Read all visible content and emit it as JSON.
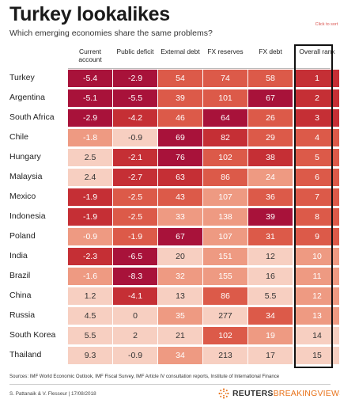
{
  "header": {
    "title": "Turkey lookalikes",
    "subtitle": "Which emerging economies share the same problems?",
    "click_note": "Click to sort"
  },
  "footer": {
    "sources": "Sources: IMF World Economic Outlook, IMF Fiscal Survey, IMF Article IV consultation reports, Institute of International Finance",
    "credits": "S. Pattanaik & V. Flesseur | 17/08/2018",
    "brand_main": "REUTERS",
    "brand_sub": "BREAKINGVIEWS"
  },
  "colors": {
    "dark": "#a8123a",
    "strong": "#c52f35",
    "mid": "#dc5a49",
    "light": "#ee9a82",
    "pale": "#f7cfc1",
    "rank_box": "#111111",
    "accent": "#e8731b"
  },
  "chart_data": {
    "type": "table",
    "title": "Turkey lookalikes",
    "subtitle": "Which emerging economies share the same problems?",
    "columns": [
      "Current account",
      "Public deficit",
      "External debt",
      "FX reserves",
      "FX debt",
      "Overall rank"
    ],
    "rows": [
      {
        "country": "Turkey",
        "values": [
          "-5.4",
          "-2.9",
          "54",
          "74",
          "58",
          "1"
        ],
        "shades": [
          "dark",
          "dark",
          "mid",
          "mid",
          "mid",
          "strong"
        ]
      },
      {
        "country": "Argentina",
        "values": [
          "-5.1",
          "-5.5",
          "39",
          "101",
          "67",
          "2"
        ],
        "shades": [
          "dark",
          "dark",
          "mid",
          "mid",
          "dark",
          "strong"
        ]
      },
      {
        "country": "South Africa",
        "values": [
          "-2.9",
          "-4.2",
          "46",
          "64",
          "26",
          "3"
        ],
        "shades": [
          "dark",
          "strong",
          "mid",
          "dark",
          "mid",
          "strong"
        ]
      },
      {
        "country": "Chile",
        "values": [
          "-1.8",
          "-0.9",
          "69",
          "82",
          "29",
          "4"
        ],
        "shades": [
          "light",
          "pale",
          "dark",
          "strong",
          "mid",
          "mid"
        ]
      },
      {
        "country": "Hungary",
        "values": [
          "2.5",
          "-2.1",
          "76",
          "102",
          "38",
          "5"
        ],
        "shades": [
          "pale",
          "strong",
          "dark",
          "mid",
          "strong",
          "mid"
        ]
      },
      {
        "country": "Malaysia",
        "values": [
          "2.4",
          "-2.7",
          "63",
          "86",
          "24",
          "6"
        ],
        "shades": [
          "pale",
          "strong",
          "strong",
          "mid",
          "light",
          "mid"
        ]
      },
      {
        "country": "Mexico",
        "values": [
          "-1.9",
          "-2.5",
          "43",
          "107",
          "36",
          "7"
        ],
        "shades": [
          "strong",
          "mid",
          "mid",
          "light",
          "mid",
          "mid"
        ]
      },
      {
        "country": "Indonesia",
        "values": [
          "-1.9",
          "-2.5",
          "33",
          "138",
          "39",
          "8"
        ],
        "shades": [
          "strong",
          "mid",
          "light",
          "light",
          "dark",
          "mid"
        ]
      },
      {
        "country": "Poland",
        "values": [
          "-0.9",
          "-1.9",
          "67",
          "107",
          "31",
          "9"
        ],
        "shades": [
          "light",
          "mid",
          "dark",
          "light",
          "mid",
          "mid"
        ]
      },
      {
        "country": "India",
        "values": [
          "-2.3",
          "-6.5",
          "20",
          "151",
          "12",
          "10"
        ],
        "shades": [
          "strong",
          "dark",
          "pale",
          "light",
          "pale",
          "light"
        ]
      },
      {
        "country": "Brazil",
        "values": [
          "-1.6",
          "-8.3",
          "32",
          "155",
          "16",
          "11"
        ],
        "shades": [
          "light",
          "dark",
          "light",
          "light",
          "pale",
          "light"
        ]
      },
      {
        "country": "China",
        "values": [
          "1.2",
          "-4.1",
          "13",
          "86",
          "5.5",
          "12"
        ],
        "shades": [
          "pale",
          "strong",
          "pale",
          "mid",
          "pale",
          "light"
        ]
      },
      {
        "country": "Russia",
        "values": [
          "4.5",
          "0",
          "35",
          "277",
          "34",
          "13"
        ],
        "shades": [
          "pale",
          "pale",
          "light",
          "pale",
          "mid",
          "light"
        ]
      },
      {
        "country": "South Korea",
        "values": [
          "5.5",
          "2",
          "21",
          "102",
          "19",
          "14"
        ],
        "shades": [
          "pale",
          "pale",
          "pale",
          "mid",
          "light",
          "pale"
        ]
      },
      {
        "country": "Thailand",
        "values": [
          "9.3",
          "-0.9",
          "34",
          "213",
          "17",
          "15"
        ],
        "shades": [
          "pale",
          "pale",
          "light",
          "pale",
          "pale",
          "pale"
        ]
      }
    ]
  }
}
